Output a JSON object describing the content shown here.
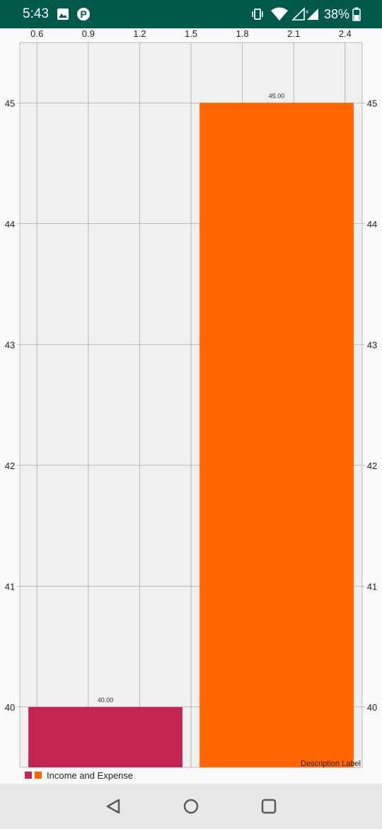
{
  "status_bar": {
    "time": "5:43",
    "left_icons": [
      "image-icon",
      "parking-p-icon"
    ],
    "right_icons": [
      "vibrate-icon",
      "wifi-icon",
      "signal-icon",
      "battery-icon"
    ],
    "battery_text": "38%",
    "background_color": "#01594b"
  },
  "chart_data": {
    "type": "bar",
    "title": "",
    "xlabel": "",
    "ylabel": "",
    "x_axis_position": "top",
    "x_ticks": [
      "0.6",
      "0.9",
      "1.2",
      "1.5",
      "1.8",
      "2.1",
      "2.4"
    ],
    "x_tick_values": [
      0.6,
      0.9,
      1.2,
      1.5,
      1.8,
      2.1,
      2.4
    ],
    "xlim": [
      0.5,
      2.5
    ],
    "y_ticks_left": [
      "40",
      "41",
      "42",
      "43",
      "44",
      "45"
    ],
    "y_ticks_right": [
      "40",
      "41",
      "42",
      "43",
      "44",
      "45"
    ],
    "y_tick_values": [
      40,
      41,
      42,
      43,
      44,
      45
    ],
    "ylim": [
      39.5,
      45.5
    ],
    "bars": [
      {
        "x": 1.0,
        "value": 40,
        "value_label": "40.00",
        "color": "#c2254f"
      },
      {
        "x": 2.0,
        "value": 45,
        "value_label": "45.00",
        "color": "#ff6600"
      }
    ],
    "bar_width": 0.9,
    "grid": true,
    "background_color": "#f0f0f0",
    "grid_color": "#aaaaaa",
    "legend": {
      "placement": "bottom-left",
      "label": "Income and Expense",
      "colors": [
        "#c2254f",
        "#ff6600"
      ]
    },
    "description": "Description Label"
  },
  "nav_bar": {
    "buttons": [
      "back-icon",
      "home-icon",
      "recents-icon"
    ]
  }
}
